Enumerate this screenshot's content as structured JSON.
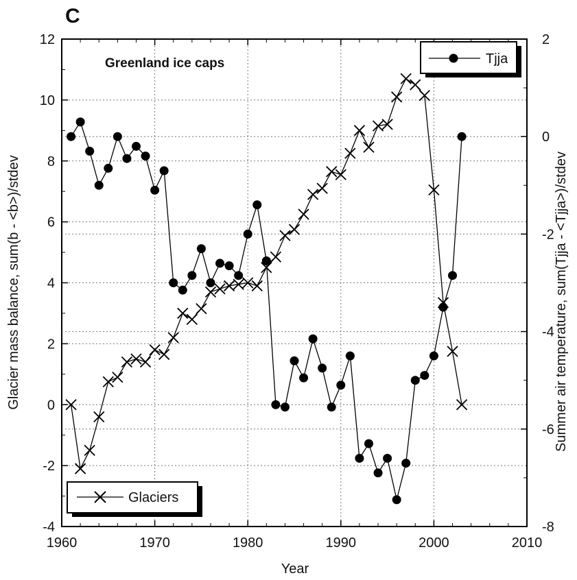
{
  "chart_data": {
    "type": "line",
    "panel_label": "C",
    "title": "Greenland ice caps",
    "xlabel": "Year",
    "ylabel_left": "Glacier mass balance, sum(b - <b>)/stdev",
    "ylabel_right": "Summer air temperature, sum(Tjja - <Tjja>)/stdev",
    "xlim": [
      1960,
      2010
    ],
    "ylim_left": [
      -4,
      12
    ],
    "ylim_right": [
      -8,
      2
    ],
    "x_ticks": [
      "1960",
      "1970",
      "1980",
      "1990",
      "2000",
      "2010"
    ],
    "y_left_ticks": [
      "-4",
      "-2",
      "0",
      "2",
      "4",
      "6",
      "8",
      "10",
      "12"
    ],
    "y_right_ticks": [
      "-8",
      "-6",
      "-4",
      "-2",
      "0",
      "2"
    ],
    "grid": true,
    "series": [
      {
        "name": "Glaciers",
        "axis": "left",
        "marker": "x",
        "legend_position": "bottom-left",
        "x": [
          1961,
          1962,
          1963,
          1964,
          1965,
          1966,
          1967,
          1968,
          1969,
          1970,
          1971,
          1972,
          1973,
          1974,
          1975,
          1976,
          1977,
          1978,
          1979,
          1980,
          1981,
          1982,
          1983,
          1984,
          1985,
          1986,
          1987,
          1988,
          1989,
          1990,
          1991,
          1992,
          1993,
          1994,
          1995,
          1996,
          1997,
          1998,
          1999,
          2000,
          2001,
          2002,
          2003
        ],
        "values": [
          0.0,
          -2.1,
          -1.5,
          -0.4,
          0.75,
          0.9,
          1.4,
          1.5,
          1.4,
          1.8,
          1.65,
          2.2,
          3.0,
          2.8,
          3.15,
          3.7,
          3.8,
          3.9,
          3.95,
          4.0,
          3.9,
          4.5,
          4.85,
          5.55,
          5.75,
          6.25,
          6.9,
          7.1,
          7.65,
          7.55,
          8.25,
          9.0,
          8.45,
          9.15,
          9.2,
          10.1,
          10.7,
          10.5,
          10.15,
          7.05,
          3.35,
          1.75,
          0.0
        ]
      },
      {
        "name": "Tjja",
        "axis": "right",
        "marker": "filled-circle",
        "legend_position": "top-right",
        "x": [
          1961,
          1962,
          1963,
          1964,
          1965,
          1966,
          1967,
          1968,
          1969,
          1970,
          1971,
          1972,
          1973,
          1974,
          1975,
          1976,
          1977,
          1978,
          1979,
          1980,
          1981,
          1982,
          1983,
          1984,
          1985,
          1986,
          1987,
          1988,
          1989,
          1990,
          1991,
          1992,
          1993,
          1994,
          1995,
          1996,
          1997,
          1998,
          1999,
          2000,
          2001,
          2002,
          2003
        ],
        "values": [
          0.0,
          0.3,
          -0.3,
          -1.0,
          -0.65,
          0.0,
          -0.45,
          -0.2,
          -0.4,
          -1.1,
          -0.7,
          -3.0,
          -3.15,
          -2.85,
          -2.3,
          -3.0,
          -2.6,
          -2.65,
          -2.85,
          -2.0,
          -1.4,
          -2.55,
          -5.5,
          -5.55,
          -4.6,
          -4.95,
          -4.15,
          -4.75,
          -5.55,
          -5.1,
          -4.5,
          -6.6,
          -6.3,
          -6.9,
          -6.6,
          -7.45,
          -6.7,
          -5.0,
          -4.9,
          -4.5,
          -3.5,
          -2.85,
          0.0
        ]
      }
    ]
  }
}
